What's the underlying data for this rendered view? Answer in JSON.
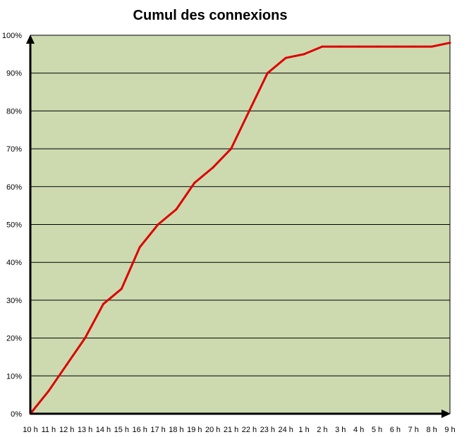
{
  "chart_data": {
    "type": "line",
    "title": "Cumul des connexions",
    "xlabel": "",
    "ylabel": "",
    "categories": [
      "10 h",
      "11 h",
      "12 h",
      "13 h",
      "14 h",
      "15 h",
      "16 h",
      "17 h",
      "18 h",
      "19 h",
      "20 h",
      "21 h",
      "22 h",
      "23 h",
      "24 h",
      "1 h",
      "2 h",
      "3 h",
      "4 h",
      "5 h",
      "6 h",
      "7 h",
      "8 h",
      "9 h"
    ],
    "series": [
      {
        "values": [
          0,
          6,
          13,
          20,
          29,
          33,
          44,
          50,
          54,
          61,
          65,
          70,
          80,
          90,
          94,
          95,
          97,
          97,
          97,
          97,
          97,
          97,
          97,
          98
        ]
      }
    ],
    "ylim": [
      0,
      100
    ],
    "yticks": [
      "0%",
      "10%",
      "20%",
      "30%",
      "40%",
      "50%",
      "60%",
      "70%",
      "80%",
      "90%",
      "100%"
    ],
    "grid": true,
    "legend": "none",
    "colors": {
      "plot_background": "#cddab0",
      "line": "#dd0000",
      "grid": "#000000",
      "axis": "#000000"
    }
  }
}
